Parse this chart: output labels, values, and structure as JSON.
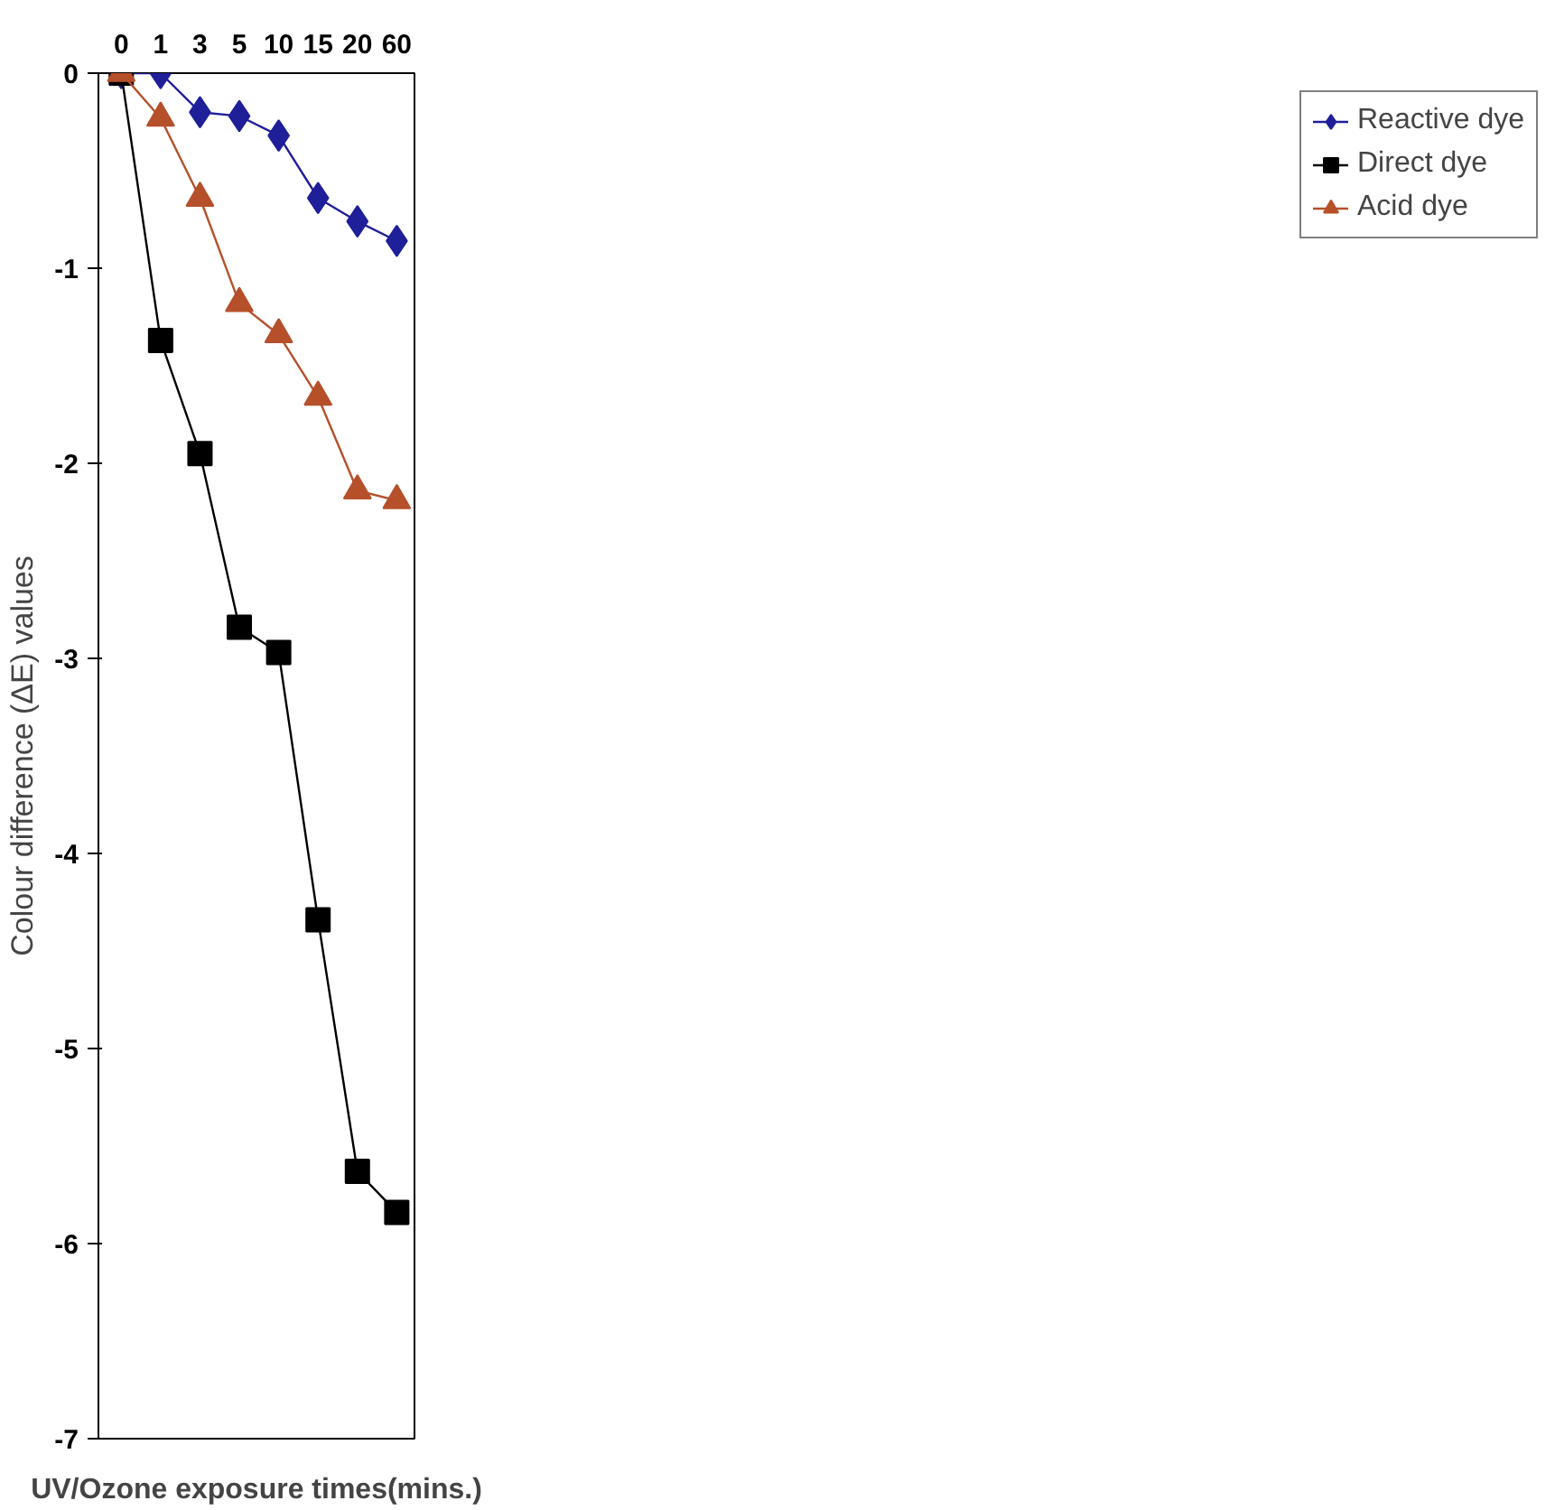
{
  "chart_data": {
    "type": "line",
    "categories": [
      "0",
      "1",
      "3",
      "5",
      "10",
      "15",
      "20",
      "60"
    ],
    "xlabel": "UV/Ozone exposure times(mins.)",
    "ylabel": "Colour difference (ΔE) values",
    "ylim": [
      -7,
      0
    ],
    "yticks": [
      0,
      -1,
      -2,
      -3,
      -4,
      -5,
      -6,
      -7
    ],
    "grid": false,
    "legend": "right",
    "tick_labels": "xy",
    "series": [
      {
        "name": "Reactive dye",
        "color": "#1f1f9a",
        "marker": "diamond",
        "values": [
          0,
          0,
          -0.2,
          -0.22,
          -0.32,
          -0.64,
          -0.76,
          -0.86
        ]
      },
      {
        "name": "Direct dye",
        "color": "#000000",
        "marker": "square",
        "values": [
          0,
          -1.37,
          -1.95,
          -2.84,
          -2.97,
          -4.34,
          -5.63,
          -5.84
        ]
      },
      {
        "name": "Acid dye",
        "color": "#b5502a",
        "marker": "triangle",
        "values": [
          0,
          -0.23,
          -0.64,
          -1.18,
          -1.34,
          -1.66,
          -2.14,
          -2.19
        ]
      }
    ]
  }
}
